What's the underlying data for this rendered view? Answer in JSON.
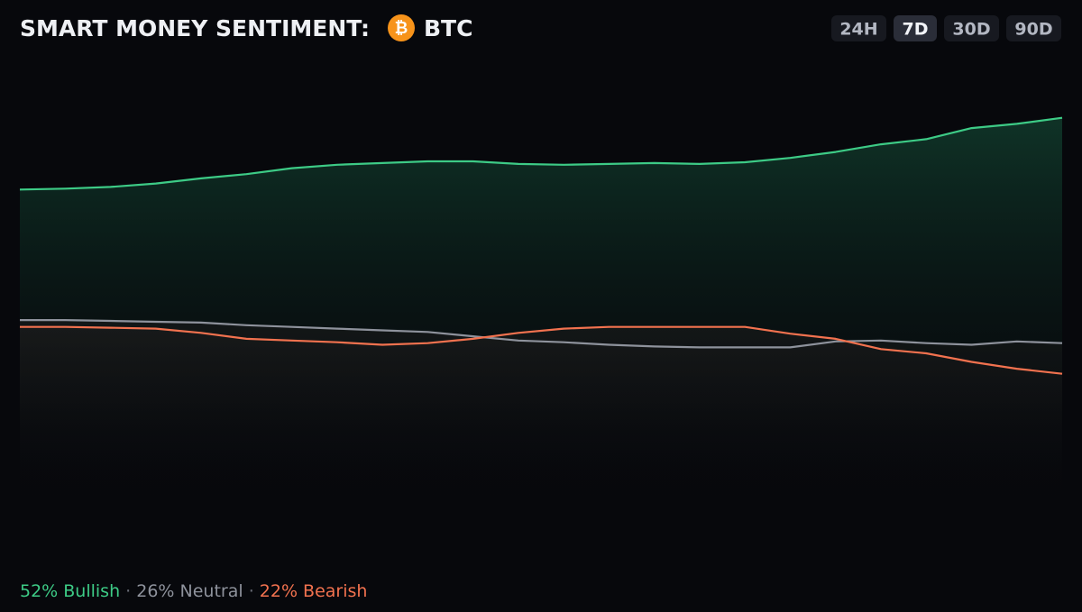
{
  "chart_data": {
    "type": "line",
    "title": "SMART MONEY SENTIMENT:",
    "coin_symbol": "₿",
    "coin": "BTC",
    "ranges": [
      "24H",
      "7D",
      "30D",
      "90D"
    ],
    "selected_range": "7D",
    "ylim": [
      0,
      60
    ],
    "series": [
      {
        "name": "52% Bullish",
        "color": "#3dcb86",
        "values": [
          43.6,
          43.7,
          43.9,
          44.3,
          44.9,
          45.4,
          46.1,
          46.5,
          46.7,
          46.9,
          46.9,
          46.6,
          46.5,
          46.6,
          46.7,
          46.6,
          46.8,
          47.3,
          48.0,
          48.9,
          49.5,
          50.8,
          51.3,
          52.0
        ]
      },
      {
        "name": "26% Neutral",
        "color": "#8e929c",
        "values": [
          28.3,
          28.3,
          28.2,
          28.1,
          28.0,
          27.7,
          27.5,
          27.3,
          27.1,
          26.9,
          26.4,
          25.9,
          25.7,
          25.4,
          25.2,
          25.1,
          25.1,
          25.1,
          25.8,
          25.9,
          25.6,
          25.4,
          25.8,
          25.6
        ]
      },
      {
        "name": "22% Bearish",
        "color": "#f2724f",
        "values": [
          27.5,
          27.5,
          27.4,
          27.3,
          26.8,
          26.1,
          25.9,
          25.7,
          25.4,
          25.6,
          26.1,
          26.8,
          27.3,
          27.5,
          27.5,
          27.5,
          27.5,
          26.7,
          26.1,
          24.9,
          24.4,
          23.4,
          22.6,
          22.0
        ]
      }
    ]
  }
}
